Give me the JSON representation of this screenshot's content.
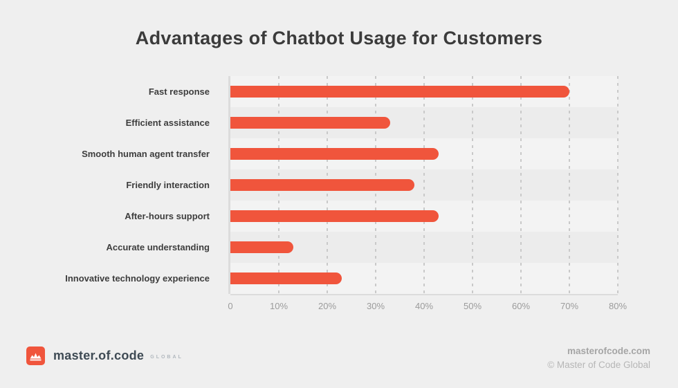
{
  "title": "Advantages of Chatbot Usage for Customers",
  "chart_data": {
    "type": "bar",
    "orientation": "horizontal",
    "title": "Advantages of Chatbot Usage for Customers",
    "categories": [
      "Fast response",
      "Efficient assistance",
      "Smooth human agent transfer",
      "Friendly interaction",
      "After-hours support",
      "Accurate understanding",
      "Innovative technology experience"
    ],
    "values": [
      70,
      33,
      43,
      38,
      43,
      13,
      23
    ],
    "value_unit": "%",
    "xlim": [
      0,
      80
    ],
    "x_tick_labels": [
      "0",
      "10%",
      "20%",
      "30%",
      "40%",
      "50%",
      "60%",
      "70%",
      "80%"
    ],
    "grid": "vertical-dashed",
    "legend": "none",
    "bar_color": "#F0553C"
  },
  "colors": {
    "background": "#EFEFEF",
    "bar": "#F0553C",
    "title_text": "#3B3B3B",
    "category_text": "#3D3D3D",
    "tick_text": "#9B9B9B",
    "axis_line": "#DCDCDC",
    "gridline": "#C9C9C9"
  },
  "footer": {
    "logo_text": "master.of.code",
    "logo_suffix": "GLOBAL",
    "website": "masterofcode.com",
    "copyright": "© Master of Code Global"
  }
}
